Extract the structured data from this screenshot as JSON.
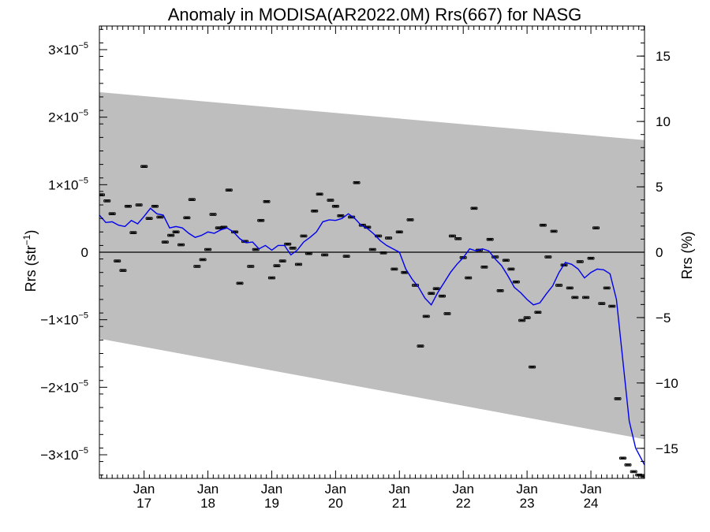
{
  "chart_data": {
    "type": "line",
    "title": "Anomaly in MODISA(AR2022.0M) Rrs(667) for NASG",
    "ylabel_left": "Rrs (str",
    "ylabel_left_sup": "−1",
    "ylabel_left_close": ")",
    "ylabel_right": "Rrs (%)",
    "xlim": [
      2016.3,
      2024.84
    ],
    "ylim_left": [
      -3.35e-05,
      3.35e-05
    ],
    "ylim_right": [
      -17.3,
      17.3
    ],
    "left_ticks": [
      {
        "value": 3e-05,
        "mant": "3×10",
        "exp": "−5"
      },
      {
        "value": 2e-05,
        "mant": "2×10",
        "exp": "−5"
      },
      {
        "value": 1e-05,
        "mant": "1×10",
        "exp": "−5"
      },
      {
        "value": 0,
        "mant": "0",
        "exp": ""
      },
      {
        "value": -1e-05,
        "mant": "−1×10",
        "exp": "−5"
      },
      {
        "value": -2e-05,
        "mant": "−2×10",
        "exp": "−5"
      },
      {
        "value": -3e-05,
        "mant": "−3×10",
        "exp": "−5"
      }
    ],
    "right_ticks": [
      {
        "value": 15,
        "label": "15"
      },
      {
        "value": 10,
        "label": "10"
      },
      {
        "value": 5,
        "label": "5"
      },
      {
        "value": 0,
        "label": "0"
      },
      {
        "value": -5,
        "label": "−5"
      },
      {
        "value": -10,
        "label": "−10"
      },
      {
        "value": -15,
        "label": "−15"
      }
    ],
    "x_ticks": [
      {
        "value": 2017.0,
        "month": "Jan",
        "year": "17"
      },
      {
        "value": 2018.0,
        "month": "Jan",
        "year": "18"
      },
      {
        "value": 2019.0,
        "month": "Jan",
        "year": "19"
      },
      {
        "value": 2020.0,
        "month": "Jan",
        "year": "20"
      },
      {
        "value": 2021.0,
        "month": "Jan",
        "year": "21"
      },
      {
        "value": 2022.0,
        "month": "Jan",
        "year": "22"
      },
      {
        "value": 2023.0,
        "month": "Jan",
        "year": "23"
      },
      {
        "value": 2024.0,
        "month": "Jan",
        "year": "24"
      }
    ],
    "band": {
      "color": "#bebebe",
      "x": [
        2016.3,
        2024.84
      ],
      "upper": [
        2.37e-05,
        1.66e-05
      ],
      "lower": [
        -1.28e-05,
        -2.77e-05
      ]
    },
    "series": [
      {
        "role": "monthly anomaly",
        "style": "error-bar markers",
        "color": "#000000",
        "x": [
          2016.33,
          2016.42,
          2016.5,
          2016.58,
          2016.67,
          2016.75,
          2016.83,
          2016.92,
          2017.0,
          2017.08,
          2017.17,
          2017.25,
          2017.33,
          2017.42,
          2017.5,
          2017.58,
          2017.67,
          2017.75,
          2017.83,
          2017.92,
          2018.0,
          2018.08,
          2018.17,
          2018.25,
          2018.33,
          2018.42,
          2018.5,
          2018.58,
          2018.67,
          2018.75,
          2018.83,
          2018.92,
          2019.0,
          2019.08,
          2019.17,
          2019.25,
          2019.33,
          2019.42,
          2019.5,
          2019.58,
          2019.67,
          2019.75,
          2019.83,
          2019.92,
          2020.0,
          2020.08,
          2020.17,
          2020.25,
          2020.33,
          2020.42,
          2020.5,
          2020.58,
          2020.67,
          2020.75,
          2020.83,
          2020.92,
          2021.0,
          2021.08,
          2021.17,
          2021.25,
          2021.33,
          2021.42,
          2021.5,
          2021.58,
          2021.67,
          2021.75,
          2021.83,
          2021.92,
          2022.0,
          2022.08,
          2022.17,
          2022.25,
          2022.33,
          2022.42,
          2022.5,
          2022.58,
          2022.67,
          2022.75,
          2022.83,
          2022.92,
          2023.0,
          2023.08,
          2023.17,
          2023.25,
          2023.33,
          2023.42,
          2023.5,
          2023.58,
          2023.67,
          2023.75,
          2023.83,
          2023.92,
          2024.0,
          2024.08,
          2024.17,
          2024.25,
          2024.33,
          2024.42,
          2024.5,
          2024.58,
          2024.67,
          2024.75,
          2024.83
        ],
        "y": [
          8.5e-06,
          7.6e-06,
          5.7e-06,
          -1.3e-06,
          -2.7e-06,
          6.8e-06,
          2.9e-06,
          7e-06,
          1.27e-05,
          5e-06,
          6.8e-06,
          5.2e-06,
          1.5e-06,
          2.5e-06,
          3e-06,
          1.1e-06,
          5.1e-06,
          7.8e-06,
          -2.1e-06,
          -1.1e-06,
          4e-07,
          5.6e-06,
          3.6e-06,
          3.7e-06,
          9.2e-06,
          3e-06,
          -4.6e-06,
          1.6e-06,
          -2.1e-06,
          4e-07,
          4.7e-06,
          7.5e-06,
          -3.8e-06,
          -2e-06,
          -1.3e-06,
          1.2e-06,
          6e-07,
          -1.8e-06,
          2.4e-06,
          -2e-07,
          6.1e-06,
          8.6e-06,
          -4e-07,
          7.7e-06,
          6.8e-06,
          5.4e-06,
          -6e-07,
          5.2e-06,
          1.03e-05,
          4e-06,
          3.7e-06,
          4e-07,
          2.4e-06,
          -1e-07,
          2.1e-06,
          -2.5e-06,
          3e-06,
          -3e-06,
          4.8e-06,
          -4.9e-06,
          -1.39e-05,
          -9.5e-06,
          -6.1e-06,
          -5.4e-06,
          -6.5e-06,
          -9.1e-06,
          2.4e-06,
          2e-06,
          -8e-07,
          -3.8e-06,
          6.5e-06,
          3e-07,
          -2.2e-06,
          1.9e-06,
          -7e-07,
          -5.7e-06,
          -1.2e-06,
          -2.5e-06,
          -4.4e-06,
          -1.01e-05,
          -9.7e-06,
          -1.7e-05,
          -8.9e-06,
          4e-06,
          -7e-07,
          3.1e-06,
          -4.9e-06,
          -1.9e-06,
          -5.3e-06,
          -6.7e-06,
          -1.4e-06,
          -6.7e-06,
          -9e-07,
          3.6e-06,
          -7.6e-06,
          -5.3e-06,
          -8e-06,
          -2.17e-05,
          -3.05e-05,
          -3.15e-05,
          -3.25e-05,
          -3.3e-05,
          -3.32e-05
        ]
      },
      {
        "role": "running mean",
        "style": "line",
        "color": "#0000ee",
        "x": [
          2016.3,
          2016.4,
          2016.5,
          2016.6,
          2016.7,
          2016.8,
          2016.9,
          2017.0,
          2017.1,
          2017.2,
          2017.3,
          2017.4,
          2017.5,
          2017.6,
          2017.7,
          2017.8,
          2017.9,
          2018.0,
          2018.1,
          2018.2,
          2018.3,
          2018.4,
          2018.5,
          2018.6,
          2018.7,
          2018.8,
          2018.9,
          2019.0,
          2019.1,
          2019.2,
          2019.3,
          2019.4,
          2019.5,
          2019.6,
          2019.7,
          2019.8,
          2019.9,
          2020.0,
          2020.1,
          2020.2,
          2020.3,
          2020.4,
          2020.5,
          2020.6,
          2020.7,
          2020.8,
          2020.9,
          2021.0,
          2021.1,
          2021.2,
          2021.3,
          2021.4,
          2021.5,
          2021.6,
          2021.7,
          2021.8,
          2021.9,
          2022.0,
          2022.1,
          2022.2,
          2022.3,
          2022.4,
          2022.5,
          2022.6,
          2022.7,
          2022.8,
          2022.9,
          2023.0,
          2023.1,
          2023.2,
          2023.3,
          2023.4,
          2023.5,
          2023.6,
          2023.7,
          2023.8,
          2023.9,
          2024.0,
          2024.1,
          2024.2,
          2024.3,
          2024.4,
          2024.5,
          2024.6,
          2024.7,
          2024.84
        ],
        "y": [
          5.5e-06,
          4.4e-06,
          4.5e-06,
          4e-06,
          3.8e-06,
          4.7e-06,
          4.2e-06,
          5.3e-06,
          6.5e-06,
          5.7e-06,
          5.5e-06,
          3.6e-06,
          3.8e-06,
          3.6e-06,
          2.8e-06,
          2.2e-06,
          2.5e-06,
          3e-06,
          2.8e-06,
          3.3e-06,
          3.6e-06,
          3e-06,
          2e-06,
          1.4e-06,
          1.5e-06,
          5e-07,
          1e-06,
          3e-07,
          1e-06,
          1e-06,
          -4e-07,
          3e-07,
          1.5e-06,
          2.2e-06,
          3e-06,
          4.5e-06,
          4.8e-06,
          4.7e-06,
          5e-06,
          5.7e-06,
          5e-06,
          4e-06,
          3.5e-06,
          2.7e-06,
          1.7e-06,
          1e-06,
          5e-07,
          0.0,
          -2.5e-06,
          -4e-06,
          -5.2e-06,
          -6.8e-06,
          -7.8e-06,
          -6e-06,
          -4.5e-06,
          -3e-06,
          -1.8e-06,
          -8e-07,
          5e-07,
          2e-07,
          5e-07,
          2e-07,
          -1e-06,
          -2e-06,
          -3.5e-06,
          -5.2e-06,
          -6e-06,
          -7e-06,
          -7.8e-06,
          -7.5e-06,
          -6.2e-06,
          -5e-06,
          -3e-06,
          -1.5e-06,
          -1.8e-06,
          -2.5e-06,
          -3.8e-06,
          -3e-06,
          -2.5e-06,
          -2.6e-06,
          -3.2e-06,
          -7e-06,
          -1.6e-05,
          -2.5e-05,
          -2.9e-05,
          -3.15e-05
        ]
      }
    ],
    "zero_line": true,
    "grid": false
  }
}
